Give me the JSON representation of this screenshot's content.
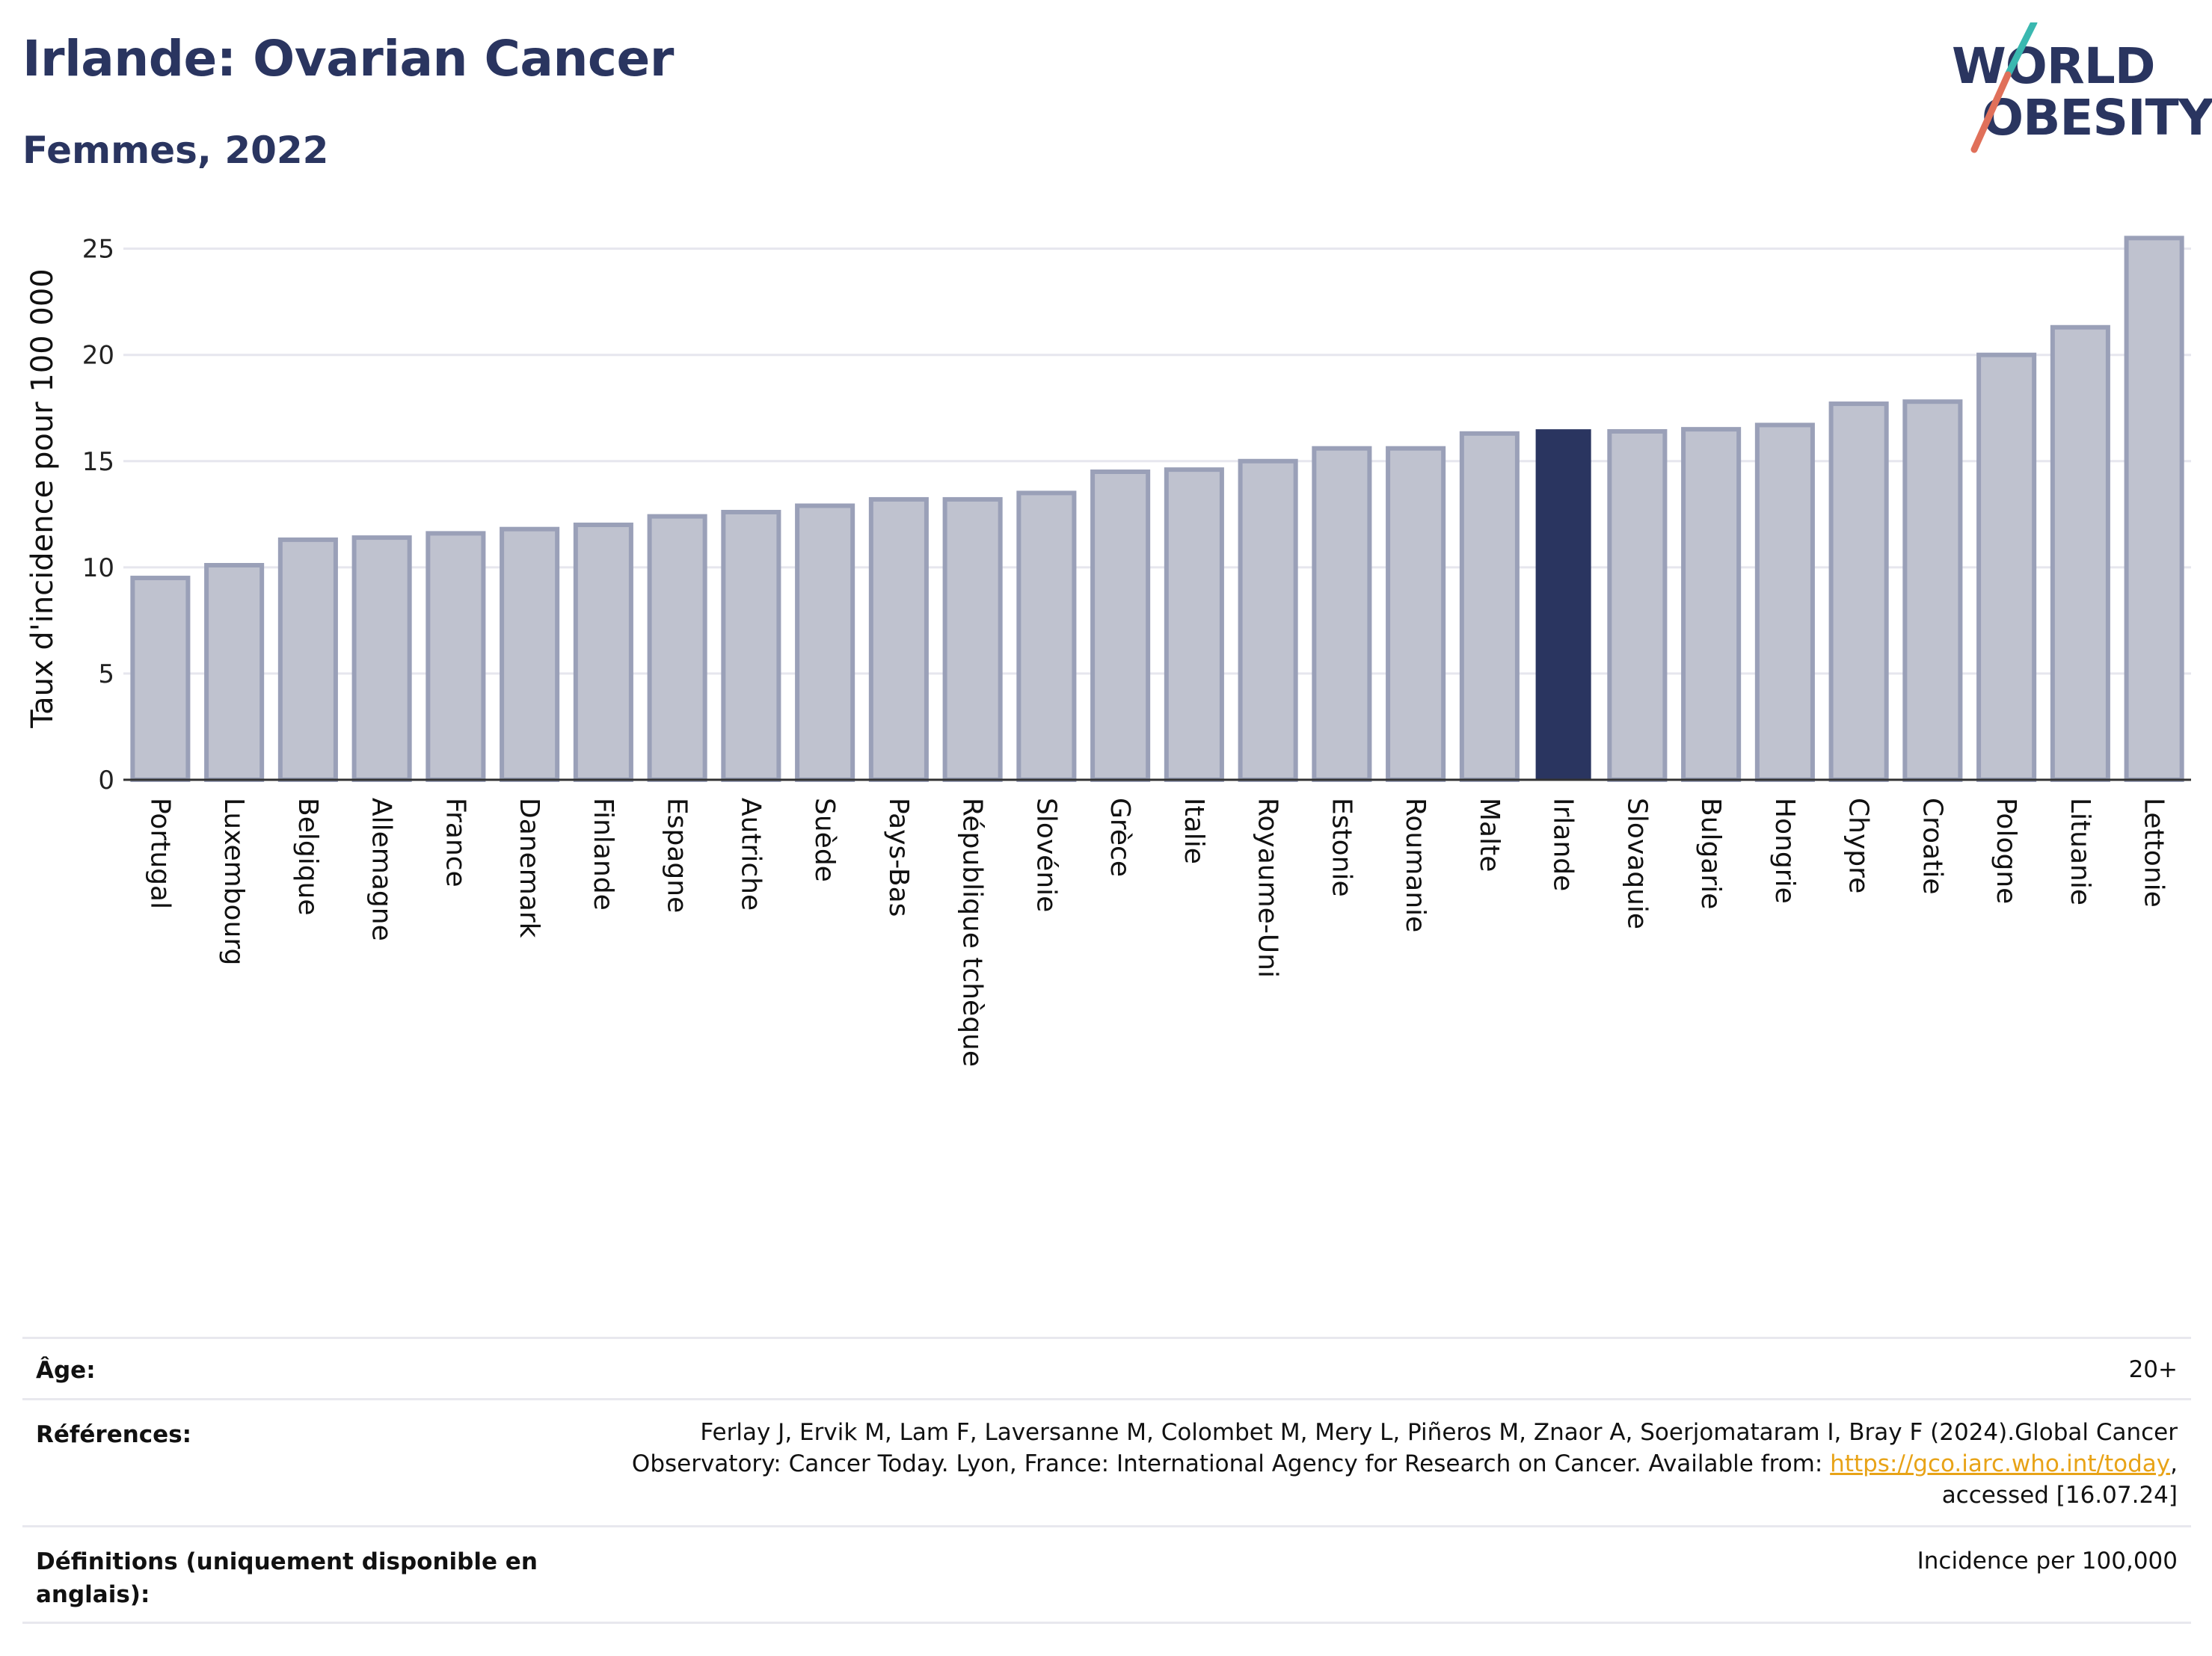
{
  "header": {
    "title": "Irlande: Ovarian Cancer",
    "subtitle": "Femmes, 2022"
  },
  "logo": {
    "line1": "WORLD",
    "line2": "OBESITY"
  },
  "chart_data": {
    "type": "bar",
    "ylabel": "Taux d'incidence pour 100 000",
    "ylim": [
      0,
      26.5
    ],
    "yticks": [
      0,
      5,
      10,
      15,
      20,
      25
    ],
    "grid": true,
    "highlight": "Irlande",
    "colors": {
      "bar": "#bfc2cf",
      "bar_border": "#9aa0b8",
      "highlight": "#2a3560",
      "grid": "#e6e6ee",
      "axis": "#333333"
    },
    "categories": [
      "Portugal",
      "Luxembourg",
      "Belgique",
      "Allemagne",
      "France",
      "Danemark",
      "Finlande",
      "Espagne",
      "Autriche",
      "Suède",
      "Pays-Bas",
      "République tchèque",
      "Slovénie",
      "Grèce",
      "Italie",
      "Royaume-Uni",
      "Estonie",
      "Roumanie",
      "Malte",
      "Irlande",
      "Slovaquie",
      "Bulgarie",
      "Hongrie",
      "Chypre",
      "Croatie",
      "Pologne",
      "Lituanie",
      "Lettonie"
    ],
    "values": [
      9.5,
      10.1,
      11.3,
      11.4,
      11.6,
      11.8,
      12.0,
      12.4,
      12.6,
      12.9,
      13.2,
      13.2,
      13.5,
      14.5,
      14.6,
      15.0,
      15.6,
      15.6,
      16.3,
      16.5,
      16.4,
      16.5,
      16.7,
      17.7,
      17.8,
      20.0,
      21.3,
      25.5
    ]
  },
  "meta": {
    "age_label": "Âge:",
    "age_value": "20+",
    "refs_label": "Références:",
    "refs_line1": "Ferlay J, Ervik M, Lam F, Laversanne M, Colombet M, Mery L, Piñeros M, Znaor A, Soerjomataram I, Bray F (2024).Global Cancer",
    "refs_line2_pre": "Observatory: Cancer Today. Lyon, France: International Agency for Research on Cancer. Available from: ",
    "refs_link": "https://gco.iarc.who.int/today",
    "refs_line2_post": ",",
    "refs_line3": "accessed [16.07.24]",
    "defs_label_line1": "Définitions (uniquement disponible en",
    "defs_label_line2": "anglais):",
    "defs_value": "Incidence per 100,000"
  }
}
